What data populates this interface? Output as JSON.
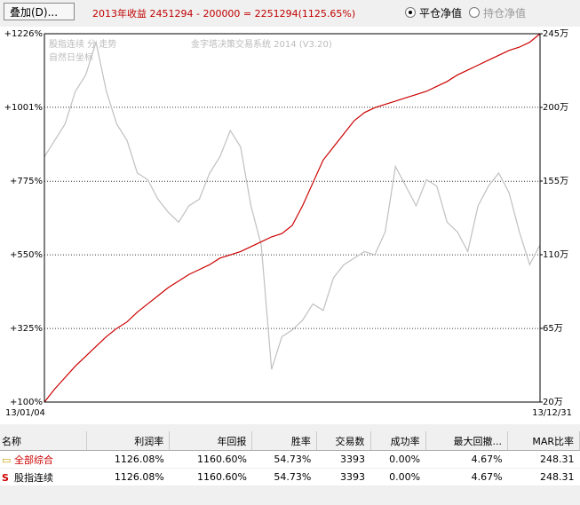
{
  "header": {
    "button": "叠加(D)...",
    "summary": "2013年收益 2451294 - 200000 = 2251294(1125.65%)",
    "radio_options": [
      "平仓净值",
      "持仓净值"
    ]
  },
  "chart_data": {
    "type": "line",
    "annotations": [
      "股指连续 分 走势",
      "自然日坐标",
      "金字塔决策交易系统 2014 (V3.20)"
    ],
    "categories": [
      "13/01/04",
      null,
      null,
      null,
      null,
      null,
      null,
      null,
      null,
      null,
      null,
      null,
      null,
      null,
      null,
      null,
      null,
      null,
      null,
      null,
      null,
      null,
      null,
      null,
      null,
      null,
      null,
      null,
      null,
      null,
      null,
      null,
      null,
      null,
      null,
      null,
      null,
      null,
      null,
      null,
      null,
      null,
      null,
      null,
      null,
      null,
      null,
      null,
      "13/12/31"
    ],
    "series": [
      {
        "name": "平仓净值",
        "color": "#cc0000",
        "values": [
          100,
          140,
          175,
          210,
          240,
          270,
          300,
          325,
          345,
          375,
          400,
          425,
          450,
          470,
          490,
          505,
          520,
          540,
          550,
          560,
          575,
          590,
          605,
          615,
          640,
          700,
          770,
          840,
          880,
          920,
          960,
          985,
          1000,
          1010,
          1020,
          1030,
          1040,
          1050,
          1065,
          1080,
          1100,
          1115,
          1130,
          1145,
          1160,
          1175,
          1185,
          1200,
          1226
        ]
      },
      {
        "name": "股指连续",
        "color": "#c0c0c0",
        "values": [
          850,
          900,
          950,
          1050,
          1100,
          1200,
          1050,
          950,
          900,
          800,
          780,
          720,
          680,
          650,
          700,
          720,
          800,
          850,
          930,
          880,
          700,
          580,
          200,
          300,
          320,
          350,
          400,
          380,
          480,
          520,
          540,
          560,
          550,
          620,
          820,
          760,
          700,
          780,
          760,
          650,
          620,
          560,
          700,
          760,
          800,
          740,
          620,
          520,
          580
        ]
      }
    ],
    "ylim": [
      100,
      1226
    ],
    "yticks": [
      {
        "value": 100,
        "label": "+100%"
      },
      {
        "value": 325,
        "label": "+325%"
      },
      {
        "value": 550,
        "label": "+550%"
      },
      {
        "value": 775,
        "label": "+775%"
      },
      {
        "value": 1001,
        "label": "+1001%"
      },
      {
        "value": 1226,
        "label": "+1226%"
      }
    ],
    "y2lim": [
      20,
      245
    ],
    "y2ticks": [
      {
        "value": 20,
        "label": "20万"
      },
      {
        "value": 65,
        "label": "65万"
      },
      {
        "value": 110,
        "label": "110万"
      },
      {
        "value": 155,
        "label": "155万"
      },
      {
        "value": 200,
        "label": "200万"
      },
      {
        "value": 245,
        "label": "245万"
      }
    ],
    "grid": true
  },
  "table": {
    "columns": [
      "名称",
      "利润率",
      "年回报",
      "胜率",
      "交易数",
      "成功率",
      "最大回撤...",
      "MAR比率"
    ],
    "rows": [
      [
        "全部综合",
        "1126.08%",
        "1160.60%",
        "54.73%",
        "3393",
        "0.00%",
        "4.67%",
        "248.31"
      ],
      [
        "股指连续",
        "1126.08%",
        "1160.60%",
        "54.73%",
        "3393",
        "0.00%",
        "4.67%",
        "248.31"
      ]
    ]
  }
}
